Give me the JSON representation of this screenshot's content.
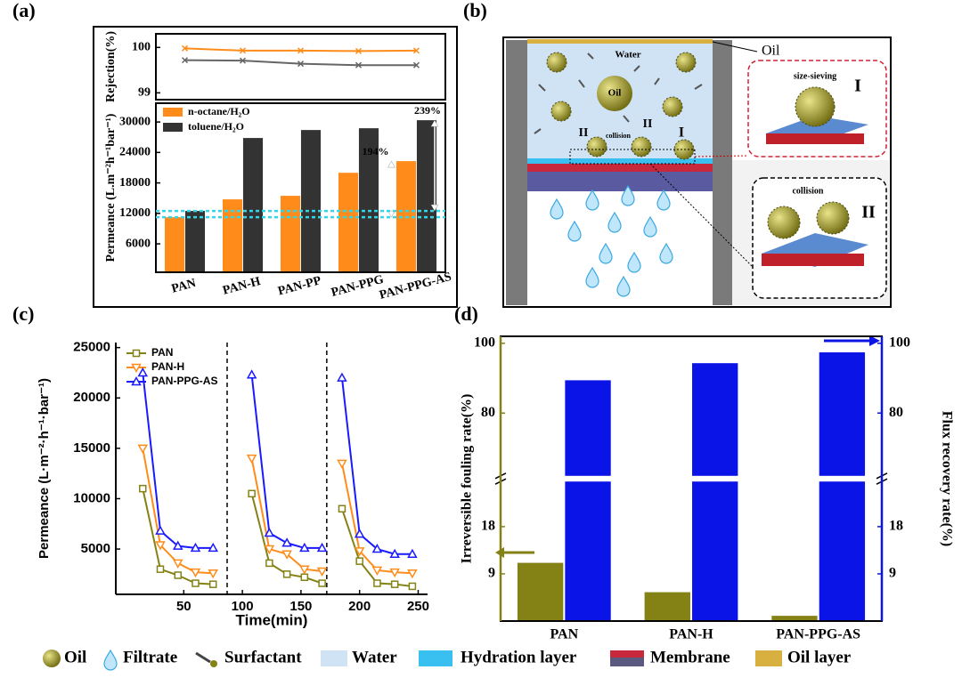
{
  "panel_labels": [
    "(a)",
    "(b)",
    "(c)",
    "(d)"
  ],
  "chart_data": [
    {
      "type": "line",
      "ylabel": "Rejection(%)",
      "ylim": [
        98.85,
        100.3
      ],
      "yticks": [
        99,
        100
      ],
      "series": [
        {
          "color": "#ff8c1a",
          "marker": "cross",
          "values": [
            99.98,
            99.93,
            99.93,
            99.92,
            99.93
          ]
        },
        {
          "color": "#666666",
          "marker": "cross",
          "values": [
            99.72,
            99.71,
            99.64,
            99.61,
            99.61
          ]
        }
      ]
    },
    {
      "type": "bar",
      "ylabel": "Permeance (L.m⁻²h⁻¹bar⁻¹)",
      "categories": [
        "PAN",
        "PAN-H",
        "PAN-PP",
        "PAN-PPG",
        "PAN-PPG-AS"
      ],
      "ylim": [
        400,
        33700
      ],
      "yticks": [
        6000,
        12000,
        18000,
        24000,
        30000
      ],
      "legend": "upper left",
      "annotations": [
        "194%",
        "239%"
      ],
      "series": [
        {
          "name": "n-octane/H₂O",
          "color": "#ff8c1a",
          "values": [
            11250,
            14760,
            15460,
            20000,
            22290
          ]
        },
        {
          "name": "toluene/H₂O",
          "color": "#333333",
          "values": [
            12480,
            26850,
            28420,
            28770,
            30350
          ]
        }
      ]
    },
    {
      "type": "line",
      "xlabel": "Time(min)",
      "ylabel": "Permeance (L·m⁻²·h⁻¹·bar⁻¹)",
      "xlim": [
        -8,
        258
      ],
      "xticks": [
        50,
        100,
        150,
        200,
        250
      ],
      "ylim": [
        500,
        25500
      ],
      "yticks": [
        5000,
        10000,
        15000,
        20000,
        25000
      ],
      "legend": "upper left",
      "x": [
        15,
        30,
        45,
        60,
        75,
        87,
        108,
        123,
        138,
        153,
        168,
        172,
        185,
        200,
        215,
        230,
        245
      ],
      "series": [
        {
          "name": "PAN",
          "color": "#858215",
          "marker": "square",
          "values": [
            11000,
            3000,
            2400,
            1600,
            1500,
            null,
            10500,
            3600,
            2500,
            2200,
            1600,
            null,
            9000,
            3800,
            1600,
            1500,
            1300
          ]
        },
        {
          "name": "PAN-H",
          "color": "#ff8c1a",
          "marker": "triangle-down",
          "values": [
            15000,
            5400,
            3600,
            2700,
            2600,
            null,
            14000,
            5000,
            4500,
            3000,
            2800,
            null,
            13500,
            4800,
            2900,
            2700,
            2600
          ]
        },
        {
          "name": "PAN-PPG-AS",
          "color": "#1a1aff",
          "marker": "triangle-up",
          "values": [
            22500,
            6800,
            5300,
            5100,
            5100,
            null,
            22300,
            6600,
            5600,
            5100,
            5100,
            null,
            22000,
            6500,
            5000,
            4500,
            4500
          ]
        }
      ]
    },
    {
      "type": "bar",
      "ylabel": "Irreversible fouling rate(%)",
      "y2label": "Flux recovery rate(%)",
      "categories": [
        "PAN",
        "PAN-H",
        "PAN-PPG-AS"
      ],
      "ylim": [
        0,
        102
      ],
      "y2lim": [
        0,
        102
      ],
      "axis_break": [
        26.6,
        62
      ],
      "yticks": [
        9,
        18,
        80,
        100
      ],
      "y2ticks": [
        9,
        18,
        80,
        100
      ],
      "series": [
        {
          "color": "#858215",
          "values": [
            11.1,
            5.5,
            1.0
          ]
        },
        {
          "color": "#0a14e6",
          "axis": "y2",
          "values": [
            89.4,
            94.3,
            97.4
          ]
        }
      ]
    }
  ],
  "diagram": {
    "water": "Water",
    "oil": "Oil",
    "oil_callout": "Oil",
    "collision": "collision",
    "mech_II_left": "II",
    "mech_II_right": "II",
    "mech_I": "I",
    "size_sieving": "size-sieving",
    "inset_I": "I",
    "inset_collision": "collision",
    "inset_II": "II"
  },
  "legend": [
    "Oil",
    "Filtrate",
    "Surfactant",
    "Water",
    "Hydration layer",
    "Membrane",
    "Oil layer"
  ]
}
